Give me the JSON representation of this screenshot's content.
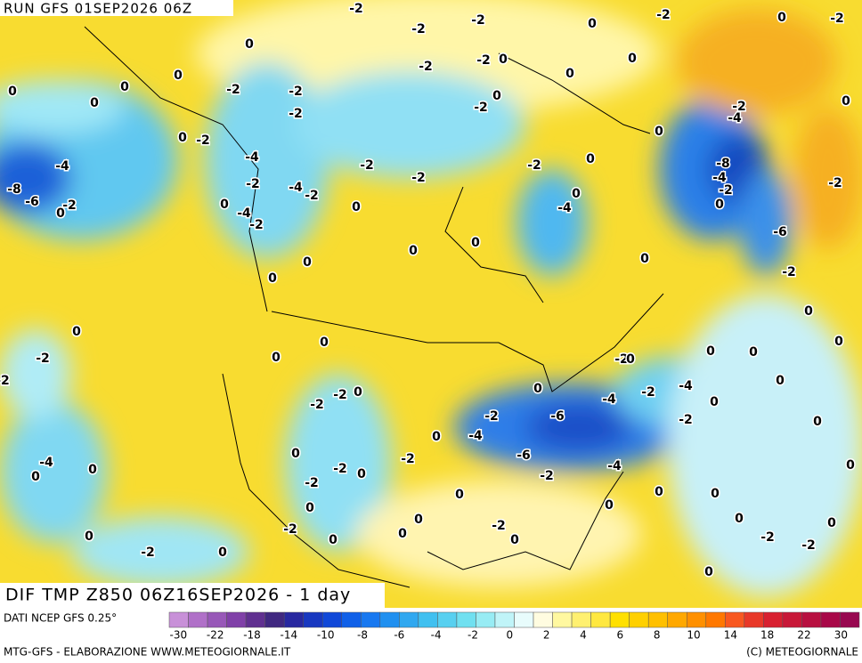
{
  "header": {
    "run": "RUN GFS 01SEP2026 06Z"
  },
  "map": {
    "title": "DIF TMP Z850 06Z16SEP2026 - 1 day",
    "contour_labels": [
      -2,
      -2,
      -2,
      0,
      -2,
      0,
      -2,
      0,
      0,
      -2,
      -2,
      -2,
      -2,
      0,
      0,
      0,
      0,
      0,
      0,
      -2,
      -2,
      0,
      -2,
      -4,
      0,
      0,
      -2,
      -4,
      -2,
      -2,
      0,
      0,
      -4,
      -8,
      -6,
      0,
      -2,
      -2,
      -4,
      -2,
      -2,
      -8,
      -4,
      -2,
      -2,
      -4,
      0,
      0,
      -4,
      -2,
      0,
      0,
      0,
      0,
      -6,
      0,
      0,
      0,
      -2,
      0,
      0,
      -2,
      0,
      0,
      -2,
      0,
      0,
      0,
      0,
      -2,
      0,
      -2,
      -2,
      0,
      -4,
      -2,
      -4,
      0,
      0,
      -2,
      -6,
      -2,
      0,
      0,
      -4,
      0,
      -2,
      -6,
      -4,
      -4,
      0,
      0,
      -2,
      0,
      -2,
      -2,
      0,
      0,
      0,
      0,
      0,
      0,
      0,
      -2,
      -2,
      0,
      0,
      0,
      0,
      -2,
      0,
      -2,
      -2,
      0,
      0,
      0
    ]
  },
  "legend": {
    "source": "DATI NCEP GFS 0.25°",
    "colors": [
      "#c890d8",
      "#b070c8",
      "#9858b8",
      "#8040a8",
      "#603090",
      "#402880",
      "#2828a0",
      "#1838c0",
      "#1048d8",
      "#1060e8",
      "#1878f0",
      "#2090f0",
      "#30a8f0",
      "#40c0f0",
      "#58d0f0",
      "#70e0f0",
      "#98ecf4",
      "#c0f4f8",
      "#e8fcfc",
      "#fffce0",
      "#fff8a0",
      "#fff070",
      "#ffe840",
      "#ffe000",
      "#ffd000",
      "#ffc000",
      "#ffa800",
      "#ff9000",
      "#ff7800",
      "#f85820",
      "#e83828",
      "#d82030",
      "#c81838",
      "#b81040",
      "#a80848",
      "#980850"
    ],
    "ticks": [
      -30,
      -22,
      -18,
      -14,
      -10,
      -8,
      -6,
      -4,
      -2,
      0,
      2,
      4,
      6,
      8,
      10,
      14,
      18,
      22,
      30
    ]
  },
  "footer": {
    "left": "MTG-GFS - ELABORAZIONE WWW.METEOGIORNALE.IT",
    "right": "(C) METEOGIORNALE"
  }
}
